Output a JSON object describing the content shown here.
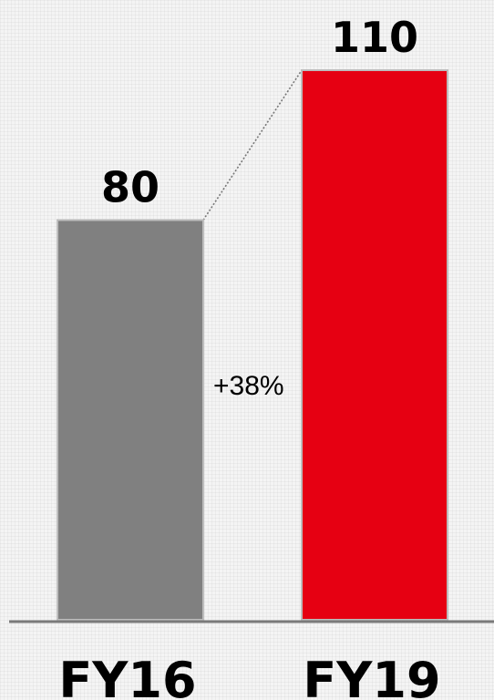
{
  "chart_data": {
    "type": "bar",
    "categories": [
      "FY16",
      "FY19"
    ],
    "values": [
      80,
      110
    ],
    "value_labels": [
      "80",
      "110"
    ],
    "colors": [
      "#808080",
      "#e60012"
    ],
    "annotation": "+38%",
    "ylim": [
      0,
      110
    ],
    "grid": false,
    "legend": "none"
  }
}
